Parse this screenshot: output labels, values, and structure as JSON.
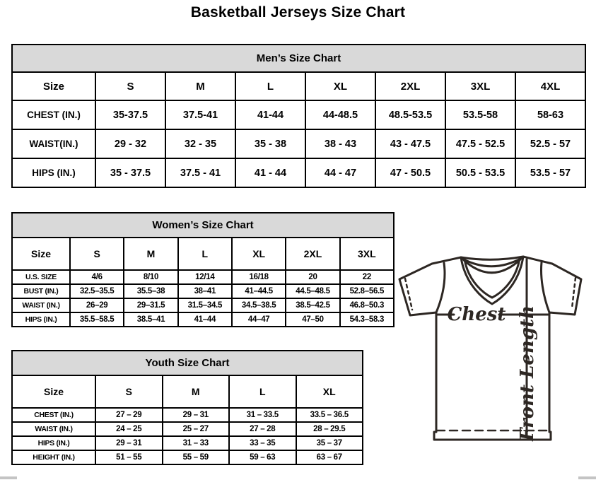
{
  "page": {
    "title": "Basketball Jerseys Size Chart"
  },
  "tables": [
    {
      "id": "men",
      "title": "Men’s Size Chart",
      "size_label": "Size",
      "columns": [
        "S",
        "M",
        "L",
        "XL",
        "2XL",
        "3XL",
        "4XL"
      ],
      "rows": [
        {
          "label": "CHEST (IN.)",
          "values": [
            "35-37.5",
            "37.5-41",
            "41-44",
            "44-48.5",
            "48.5-53.5",
            "53.5-58",
            "58-63"
          ]
        },
        {
          "label": "WAIST(IN.)",
          "values": [
            "29 - 32",
            "32 - 35",
            "35 - 38",
            "38 - 43",
            "43 - 47.5",
            "47.5 - 52.5",
            "52.5 - 57"
          ]
        },
        {
          "label": "HIPS (IN.)",
          "values": [
            "35 - 37.5",
            "37.5 - 41",
            "41 - 44",
            "44 - 47",
            "47 - 50.5",
            "50.5 - 53.5",
            "53.5 - 57"
          ]
        }
      ]
    },
    {
      "id": "women",
      "title": "Women’s Size Chart",
      "size_label": "Size",
      "columns": [
        "S",
        "M",
        "L",
        "XL",
        "2XL",
        "3XL"
      ],
      "rows": [
        {
          "label": "U.S. SIZE",
          "values": [
            "4/6",
            "8/10",
            "12/14",
            "16/18",
            "20",
            "22"
          ]
        },
        {
          "label": "BUST (IN.)",
          "values": [
            "32.5–35.5",
            "35.5–38",
            "38–41",
            "41–44.5",
            "44.5–48.5",
            "52.8–56.5"
          ]
        },
        {
          "label": "WAIST (IN.)",
          "values": [
            "26–29",
            "29–31.5",
            "31.5–34.5",
            "34.5–38.5",
            "38.5–42.5",
            "46.8–50.3"
          ]
        },
        {
          "label": "HIPS (IN.)",
          "values": [
            "35.5–58.5",
            "38.5–41",
            "41–44",
            "44–47",
            "47–50",
            "54.3–58.3"
          ]
        }
      ]
    },
    {
      "id": "youth",
      "title": "Youth Size Chart",
      "size_label": "Size",
      "columns": [
        "S",
        "M",
        "L",
        "XL"
      ],
      "rows": [
        {
          "label": "CHEST (IN.)",
          "values": [
            "27 – 29",
            "29 – 31",
            "31 – 33.5",
            "33.5 – 36.5"
          ]
        },
        {
          "label": "WAIST (IN.)",
          "values": [
            "24 – 25",
            "25 – 27",
            "27 – 28",
            "28 – 29.5"
          ]
        },
        {
          "label": "HIPS (IN.)",
          "values": [
            "29 – 31",
            "31 – 33",
            "33 – 35",
            "35 – 37"
          ]
        },
        {
          "label": "HEIGHT (IN.)",
          "values": [
            "51 – 55",
            "55 – 59",
            "59 – 63",
            "63 – 67"
          ]
        }
      ]
    }
  ],
  "diagram": {
    "chest_label": "Chest",
    "front_length_label": "Front Length"
  },
  "colors": {
    "banner_bg": "#d9d9d9",
    "table_border": "#000000",
    "diagram_stroke": "#2d2723"
  }
}
